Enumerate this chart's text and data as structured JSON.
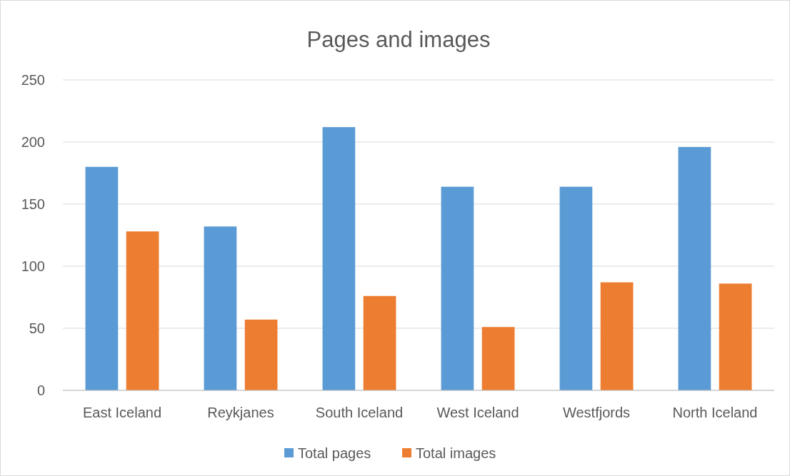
{
  "chart_data": {
    "type": "bar",
    "title": "Pages and images",
    "categories": [
      "East Iceland",
      "Reykjanes",
      "South Iceland",
      "West Iceland",
      "Westfjords",
      "North Iceland"
    ],
    "series": [
      {
        "name": "Total pages",
        "color": "#5b9bd5",
        "values": [
          180,
          132,
          212,
          164,
          164,
          196
        ]
      },
      {
        "name": "Total images",
        "color": "#ed7d31",
        "values": [
          128,
          57,
          76,
          51,
          87,
          86
        ]
      }
    ],
    "ylim": [
      0,
      250
    ],
    "yticks": [
      0,
      50,
      100,
      150,
      200,
      250
    ],
    "grid": "y",
    "legend": "bottom"
  }
}
